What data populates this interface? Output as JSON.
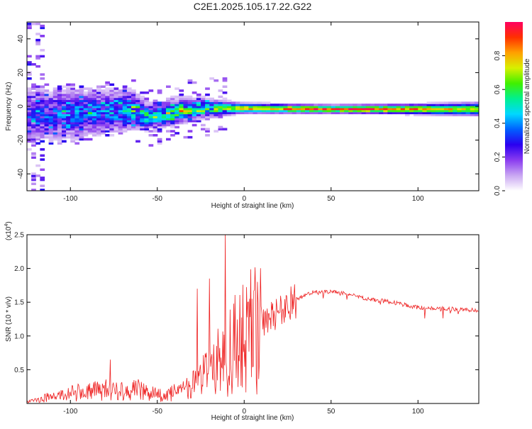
{
  "title": "C2E1.2025.105.17.22.G22",
  "chart_data": [
    {
      "type": "heatmap",
      "title": "C2E1.2025.105.17.22.G22",
      "xlabel": "Height of straight line (km)",
      "ylabel": "Frequency (Hz)",
      "xlim": [
        -125,
        135
      ],
      "ylim": [
        -50,
        50
      ],
      "x_ticks": [
        "-100",
        "-50",
        "0",
        "50",
        "100"
      ],
      "y_ticks": [
        "-40",
        "-20",
        "0",
        "20",
        "40"
      ],
      "grid": false,
      "colorbar": {
        "label": "Normalized spectral amplitude",
        "range": [
          0,
          1
        ],
        "ticks": [
          "0.0",
          "0.2",
          "0.4",
          "0.6",
          "0.8"
        ],
        "colors": [
          "#ffffff",
          "#c9a6f2",
          "#8a3cf0",
          "#2a00f0",
          "#0060ff",
          "#00d8ff",
          "#00f090",
          "#40f000",
          "#d8f000",
          "#ffa000",
          "#ff3000",
          "#ff0060"
        ]
      },
      "ridge": [
        {
          "x": -120,
          "y": -5,
          "amp": 0.25,
          "spread": 9
        },
        {
          "x": -100,
          "y": -4,
          "amp": 0.35,
          "spread": 8
        },
        {
          "x": -80,
          "y": -3,
          "amp": 0.35,
          "spread": 7
        },
        {
          "x": -65,
          "y": -2,
          "amp": 0.45,
          "spread": 6
        },
        {
          "x": -55,
          "y": -6,
          "amp": 0.5,
          "spread": 4
        },
        {
          "x": -40,
          "y": -3,
          "amp": 0.55,
          "spread": 4
        },
        {
          "x": -25,
          "y": -1,
          "amp": 0.6,
          "spread": 3
        },
        {
          "x": -10,
          "y": -1,
          "amp": 0.7,
          "spread": 2
        },
        {
          "x": 0,
          "y": -1,
          "amp": 0.8,
          "spread": 1.5
        },
        {
          "x": 50,
          "y": -1.5,
          "amp": 0.95,
          "spread": 1.2
        },
        {
          "x": 100,
          "y": -1.5,
          "amp": 0.9,
          "spread": 1.5
        },
        {
          "x": 135,
          "y": -1.5,
          "amp": 0.7,
          "spread": 2
        }
      ]
    },
    {
      "type": "line",
      "xlabel": "Height of straight line (km)",
      "ylabel": "SNR (10 * v/v)",
      "y_scale_label": "(x10",
      "y_scale_exp": "4",
      "y_scale_close": ")",
      "xlim": [
        -125,
        135
      ],
      "ylim": [
        0,
        2.5
      ],
      "x_ticks": [
        "-100",
        "-50",
        "0",
        "50",
        "100"
      ],
      "y_ticks": [
        "0.5",
        "1.0",
        "1.5",
        "2.0",
        "2.5"
      ],
      "grid": false,
      "color": "#ee2222",
      "envelope": [
        {
          "x": -125,
          "y": 0.02
        },
        {
          "x": -115,
          "y": 0.08
        },
        {
          "x": -100,
          "y": 0.15
        },
        {
          "x": -80,
          "y": 0.2
        },
        {
          "x": -60,
          "y": 0.2
        },
        {
          "x": -45,
          "y": 0.1
        },
        {
          "x": -35,
          "y": 0.25
        },
        {
          "x": -25,
          "y": 0.45
        },
        {
          "x": -15,
          "y": 0.7
        },
        {
          "x": -5,
          "y": 0.95
        },
        {
          "x": 5,
          "y": 1.1
        },
        {
          "x": 15,
          "y": 1.3
        },
        {
          "x": 25,
          "y": 1.5
        },
        {
          "x": 40,
          "y": 1.65
        },
        {
          "x": 55,
          "y": 1.65
        },
        {
          "x": 70,
          "y": 1.55
        },
        {
          "x": 85,
          "y": 1.5
        },
        {
          "x": 100,
          "y": 1.42
        },
        {
          "x": 120,
          "y": 1.4
        },
        {
          "x": 135,
          "y": 1.38
        }
      ],
      "spikes": [
        {
          "x": -77,
          "y": 0.65
        },
        {
          "x": -27,
          "y": 1.7
        },
        {
          "x": -20,
          "y": 1.85
        },
        {
          "x": -11,
          "y": 2.5
        },
        {
          "x": 3,
          "y": 1.55
        },
        {
          "x": 9,
          "y": 1.35
        }
      ]
    }
  ]
}
